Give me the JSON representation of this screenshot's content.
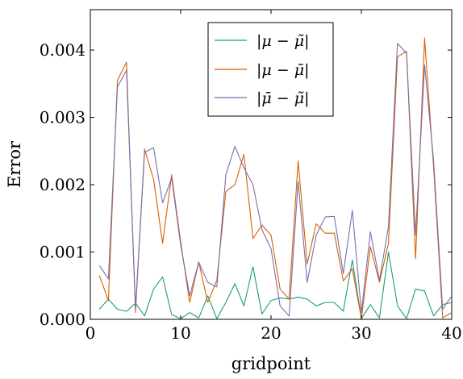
{
  "chart_data": {
    "type": "line",
    "xlabel": "gridpoint",
    "ylabel": "Error",
    "xlim": [
      0,
      40
    ],
    "ylim": [
      0,
      0.0046
    ],
    "xticks": [
      0,
      10,
      20,
      30,
      40
    ],
    "xtick_labels": [
      "0",
      "10",
      "20",
      "30",
      "40"
    ],
    "yticks": [
      0,
      0.001,
      0.002,
      0.003,
      0.004
    ],
    "ytick_labels": [
      "0.000",
      "0.001",
      "0.002",
      "0.003",
      "0.004"
    ],
    "legend_position": "top-right",
    "x": [
      1,
      2,
      3,
      4,
      5,
      6,
      7,
      8,
      9,
      10,
      11,
      12,
      13,
      14,
      15,
      16,
      17,
      18,
      19,
      20,
      21,
      22,
      23,
      24,
      25,
      26,
      27,
      28,
      29,
      30,
      31,
      32,
      33,
      34,
      35,
      36,
      37,
      38,
      39,
      40
    ],
    "series": [
      {
        "name": "|μ − μ̃|",
        "color": "#1a9e77",
        "values": [
          0.00015,
          0.0003,
          0.00015,
          0.00012,
          0.00024,
          5e-05,
          0.00045,
          0.00063,
          7e-05,
          1e-05,
          0.0001,
          2e-05,
          0.00035,
          1e-05,
          0.00025,
          0.00053,
          0.0002,
          0.00078,
          8e-05,
          0.00028,
          0.00032,
          0.0003,
          0.00033,
          0.0003,
          0.0002,
          0.00025,
          0.00025,
          0.00012,
          0.00088,
          1e-05,
          0.00022,
          2e-05,
          0.001,
          0.0002,
          1e-05,
          0.00045,
          0.00042,
          5e-05,
          0.00022,
          0.00025
        ]
      },
      {
        "name": "|μ − μ̄|",
        "color": "#d95f02",
        "values": [
          0.00065,
          0.00028,
          0.00355,
          0.00382,
          0.0001,
          0.00253,
          0.00208,
          0.00113,
          0.00215,
          0.00115,
          0.00025,
          0.00085,
          0.00025,
          0.00058,
          0.0019,
          0.002,
          0.00245,
          0.0012,
          0.0014,
          0.00125,
          0.00045,
          0.0003,
          0.00235,
          0.00082,
          0.00142,
          0.00128,
          0.00128,
          0.00057,
          0.00075,
          1e-05,
          0.00108,
          0.00055,
          0.00113,
          0.0039,
          0.00398,
          0.0009,
          0.00418,
          0.00225,
          2e-05,
          0.0001
        ]
      },
      {
        "name": "|μ̄ − μ̃|",
        "color": "#7570b3",
        "values": [
          0.0008,
          0.0006,
          0.00345,
          0.0037,
          0.00017,
          0.00248,
          0.00255,
          0.00173,
          0.0021,
          0.0011,
          0.00035,
          0.00085,
          0.00055,
          0.00048,
          0.00215,
          0.00257,
          0.00225,
          0.002,
          0.00133,
          0.00105,
          0.0002,
          5e-05,
          0.00205,
          0.00055,
          0.00125,
          0.00152,
          0.00153,
          0.00068,
          0.00162,
          0.0001,
          0.0013,
          0.00058,
          0.00138,
          0.0041,
          0.00395,
          0.00125,
          0.00378,
          0.00235,
          0.00015,
          0.00035
        ]
      }
    ]
  }
}
